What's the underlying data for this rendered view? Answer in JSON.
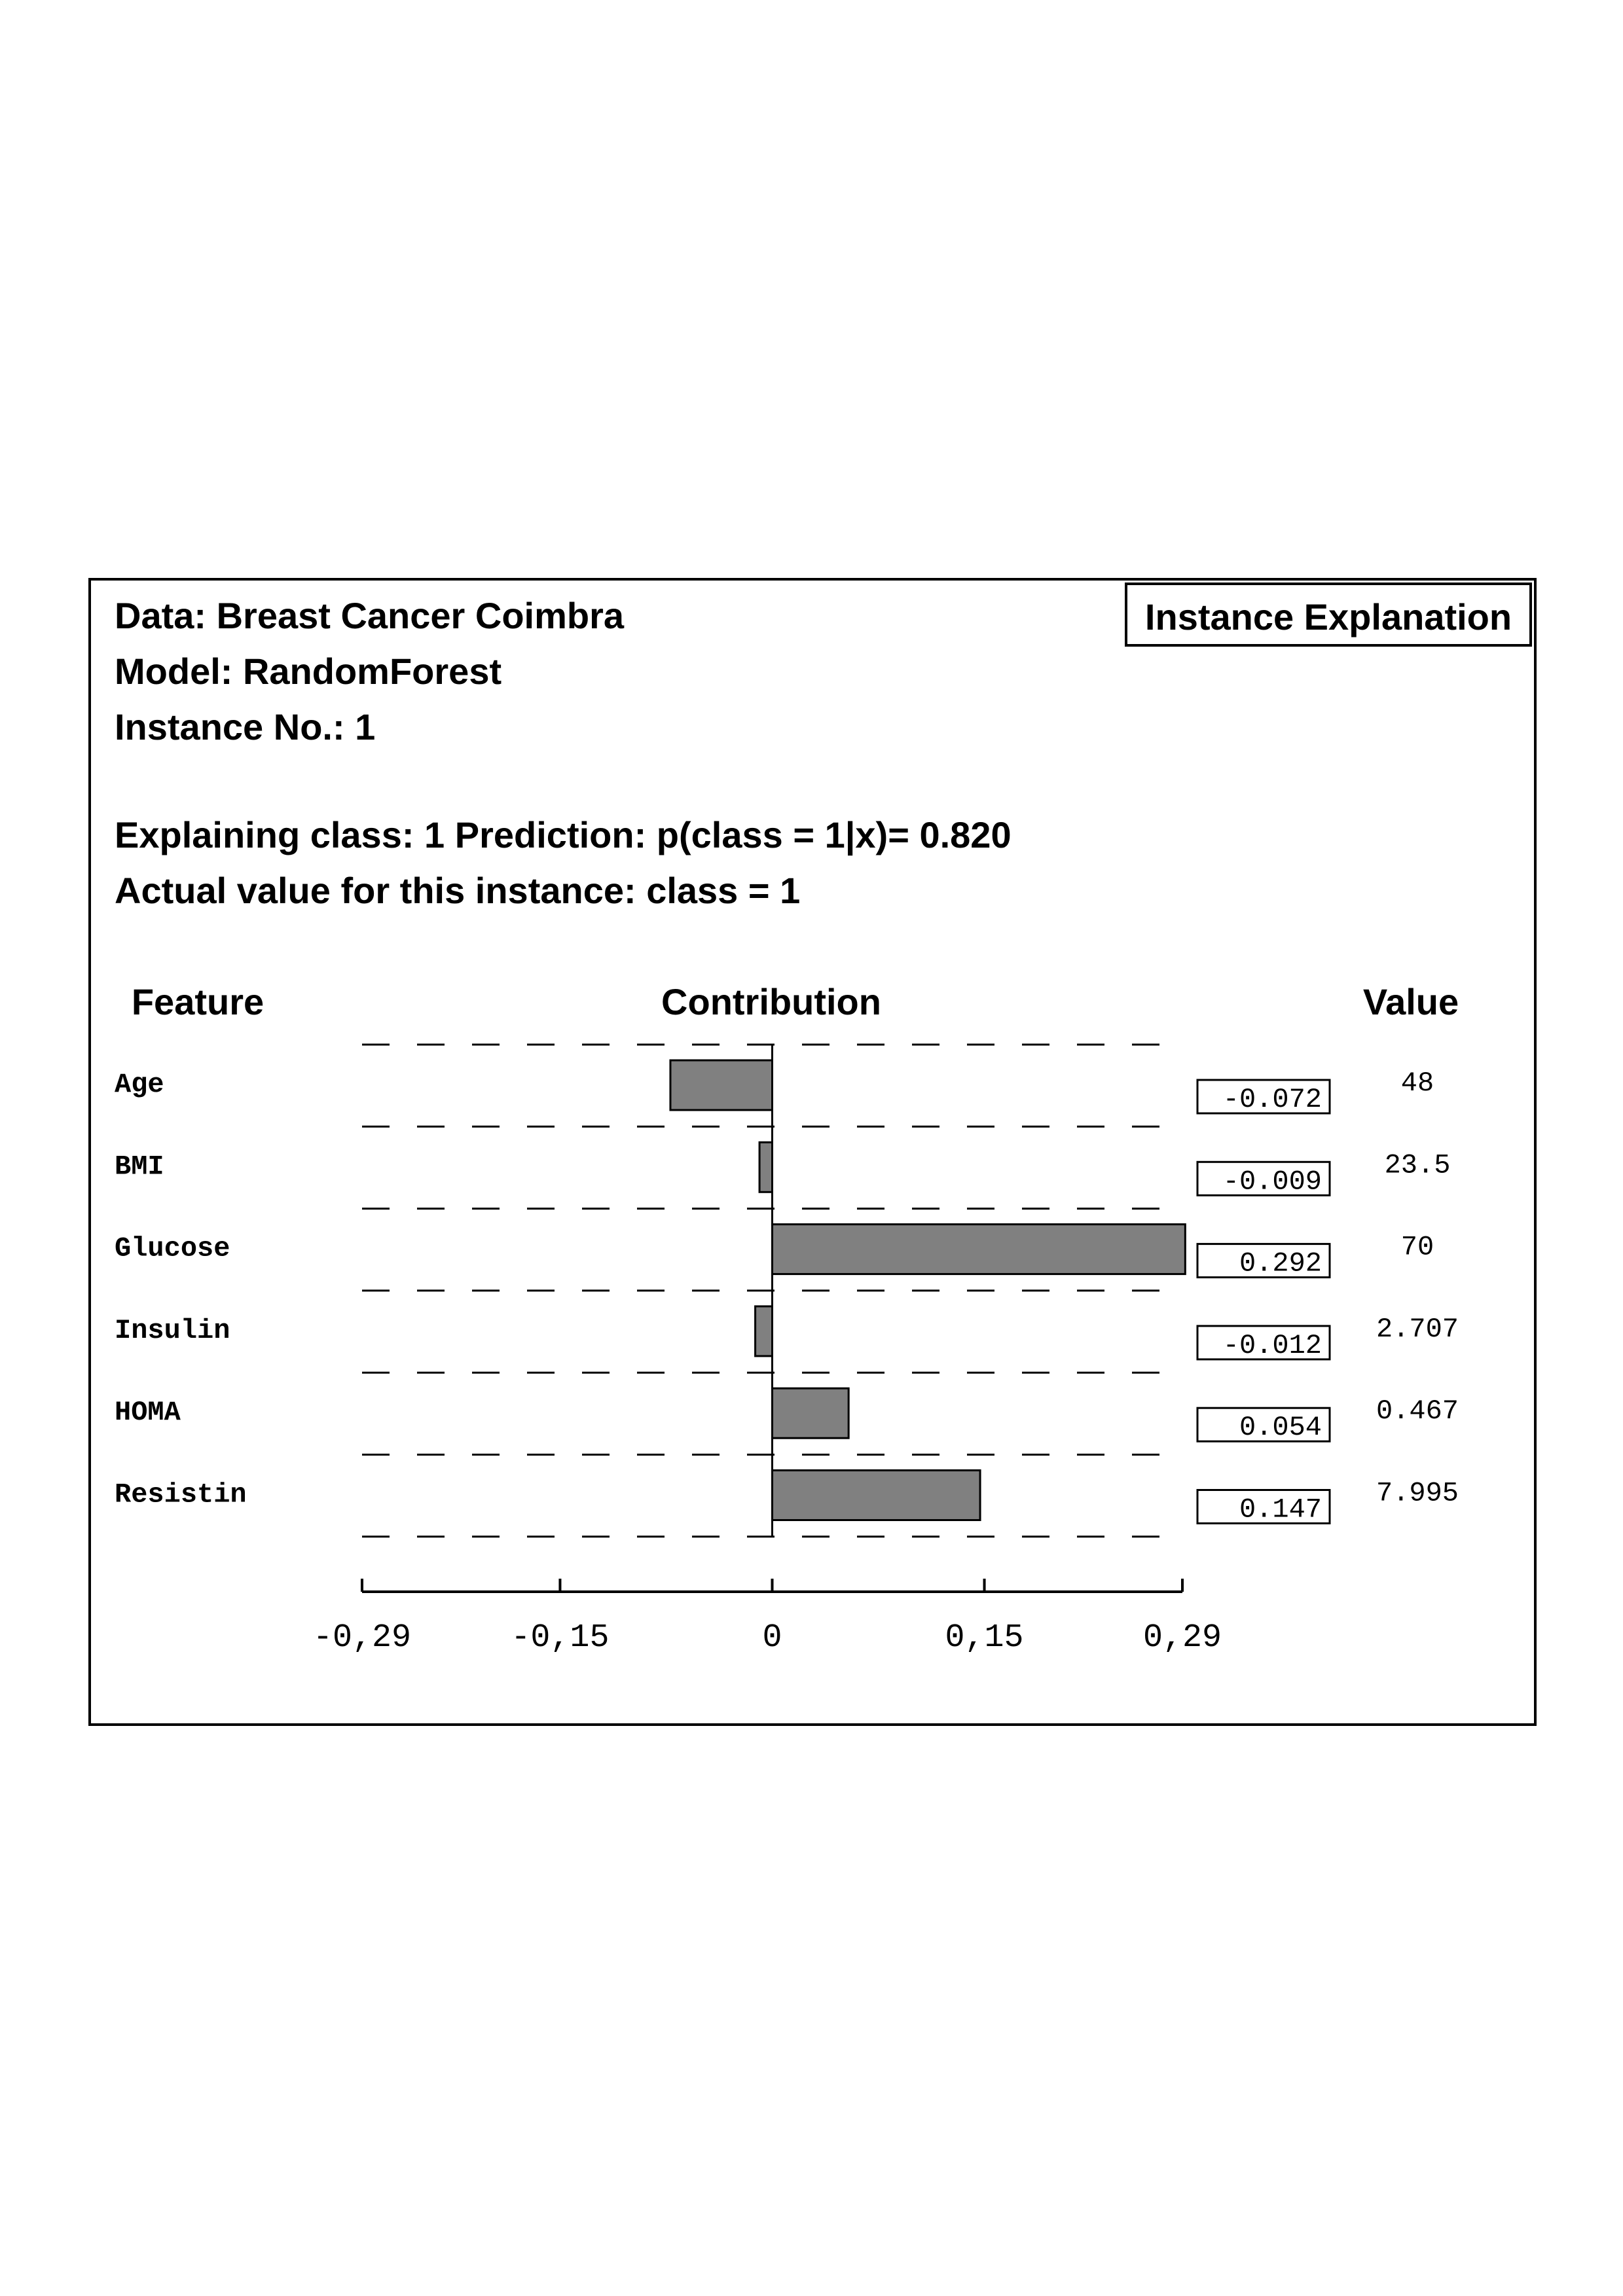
{
  "header": {
    "data_line": "Data: Breast Cancer Coimbra",
    "model_line": "Model: RandomForest",
    "instance_line": "Instance No.: 1",
    "explaining_line": "Explaining class: 1 Prediction: p(class = 1|x)= 0.820",
    "actual_line": "Actual value for this instance: class = 1",
    "badge": "Instance Explanation"
  },
  "columns": {
    "feature": "Feature",
    "contribution": "Contribution",
    "value": "Value"
  },
  "colors": {
    "bar_fill": "#808080",
    "stroke": "#000000",
    "background": "#ffffff"
  },
  "chart_data": {
    "type": "bar",
    "orientation": "horizontal",
    "categories": [
      "Age",
      "BMI",
      "Glucose",
      "Insulin",
      "HOMA",
      "Resistin"
    ],
    "values": [
      -0.072,
      -0.009,
      0.292,
      -0.012,
      0.054,
      0.147
    ],
    "contribution_labels": [
      "-0.072",
      "-0.009",
      "0.292",
      "-0.012",
      "0.054",
      "0.147"
    ],
    "feature_values": [
      "48",
      "23.5",
      "70",
      "2.707",
      "0.467",
      "7.995"
    ],
    "xlim": [
      -0.29,
      0.29
    ],
    "xticks": [
      -0.29,
      -0.15,
      0,
      0.15,
      0.29
    ],
    "xtick_labels": [
      "-0,29",
      "-0,15",
      "0",
      "0,15",
      "0,29"
    ],
    "grid": "dashed horizontal separators between rows"
  }
}
